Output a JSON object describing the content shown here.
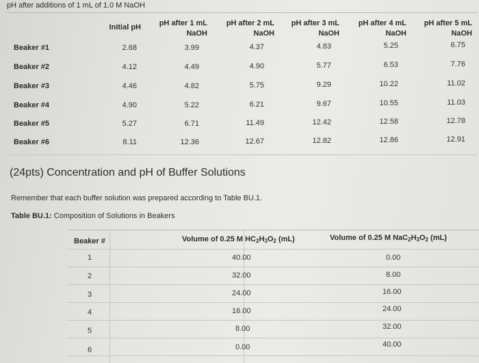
{
  "page_title": "pH after additions of 1 mL of 1.0 M NaOH",
  "ph_table": {
    "headers": [
      [
        "Initial pH",
        ""
      ],
      [
        "pH after 1 mL",
        "NaOH"
      ],
      [
        "pH after 2 mL",
        "NaOH"
      ],
      [
        "pH after 3 mL",
        "NaOH"
      ],
      [
        "pH after 4 mL",
        "NaOH"
      ],
      [
        "pH after 5 mL",
        "NaOH"
      ]
    ],
    "rows": [
      {
        "label": "Beaker #1",
        "values": [
          "2.68",
          "3.99",
          "4.37",
          "4.83",
          "5.25",
          "6.75"
        ]
      },
      {
        "label": "Beaker #2",
        "values": [
          "4.12",
          "4.49",
          "4.90",
          "5.77",
          "6.53",
          "7.76"
        ]
      },
      {
        "label": "Beaker #3",
        "values": [
          "4.46",
          "4.82",
          "5.75",
          "9.29",
          "10.22",
          "11.02"
        ]
      },
      {
        "label": "Beaker #4",
        "values": [
          "4.90",
          "5.22",
          "6.21",
          "9.67",
          "10.55",
          "11.03"
        ]
      },
      {
        "label": "Beaker #5",
        "values": [
          "5.27",
          "6.71",
          "11.49",
          "12.42",
          "12.58",
          "12.78"
        ]
      },
      {
        "label": "Beaker #6",
        "values": [
          "8.11",
          "12.36",
          "12.67",
          "12.82",
          "12.86",
          "12.91"
        ]
      }
    ]
  },
  "section_title": "(24pts) Concentration and pH of Buffer Solutions",
  "remember_text": "Remember that each buffer solution was prepared according to Table BU.1.",
  "table_caption": {
    "label": "Table BU.1:",
    "text": " Composition of Solutions in Beakers"
  },
  "bu_table": {
    "headers": {
      "beaker": "Beaker #",
      "acid": "Volume of 0.25 M HC2H3O2 (mL)",
      "salt": "Volume of 0.25 M NaC2H3O2 (mL)"
    },
    "rows": [
      {
        "beaker": "1",
        "acid": "40.00",
        "salt": "0.00"
      },
      {
        "beaker": "2",
        "acid": "32.00",
        "salt": "8.00"
      },
      {
        "beaker": "3",
        "acid": "24.00",
        "salt": "16.00"
      },
      {
        "beaker": "4",
        "acid": "16.00",
        "salt": "24.00"
      },
      {
        "beaker": "5",
        "acid": "8.00",
        "salt": "32.00"
      },
      {
        "beaker": "6",
        "acid": "0.00",
        "salt": "40.00"
      }
    ]
  }
}
